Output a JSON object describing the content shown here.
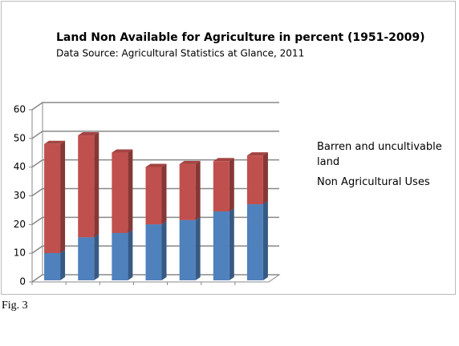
{
  "chart_data": {
    "type": "bar3d_stacked",
    "title": "Land Non Available for Agriculture in percent (1951-2009)",
    "subtitle": "Data Source: Agricultural Statistics at Glance, 2011",
    "categories": [
      null,
      null,
      null,
      null,
      null,
      null,
      null
    ],
    "series": [
      {
        "name": "Non Agricultural Uses",
        "color": "#4f81bd",
        "values": [
          9.5,
          15,
          16.5,
          19.5,
          21,
          24,
          26.5
        ]
      },
      {
        "name": "Barren and uncultivable land",
        "color": "#c0504d",
        "values": [
          38,
          35.5,
          28,
          20,
          19.5,
          17.5,
          17
        ]
      }
    ],
    "ylim": [
      0,
      60
    ],
    "yticks": [
      0,
      10,
      20,
      30,
      40,
      50,
      60
    ],
    "grid": true
  },
  "caption": "Fig. 3"
}
